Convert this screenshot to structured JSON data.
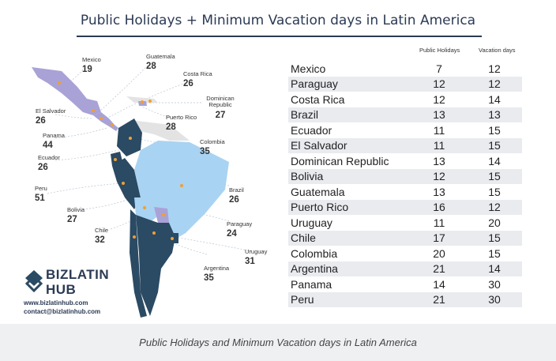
{
  "title": "Public Holidays + Minimum Vacation days in Latin America",
  "table": {
    "headers": {
      "public_holidays": "Public Holidays",
      "vacation_days": "Vacation days"
    },
    "rows": [
      {
        "country": "Mexico",
        "public_holidays": "7",
        "vacation_days": "12"
      },
      {
        "country": "Paraguay",
        "public_holidays": "12",
        "vacation_days": "12"
      },
      {
        "country": "Costa Rica",
        "public_holidays": "12",
        "vacation_days": "14"
      },
      {
        "country": "Brazil",
        "public_holidays": "13",
        "vacation_days": "13"
      },
      {
        "country": "Ecuador",
        "public_holidays": "11",
        "vacation_days": "15"
      },
      {
        "country": "El Salvador",
        "public_holidays": "11",
        "vacation_days": "15"
      },
      {
        "country": "Dominican Republic",
        "public_holidays": "13",
        "vacation_days": "14"
      },
      {
        "country": "Bolivia",
        "public_holidays": "12",
        "vacation_days": "15"
      },
      {
        "country": "Guatemala",
        "public_holidays": "13",
        "vacation_days": "15"
      },
      {
        "country": "Puerto Rico",
        "public_holidays": "16",
        "vacation_days": "12"
      },
      {
        "country": "Uruguay",
        "public_holidays": "11",
        "vacation_days": "20"
      },
      {
        "country": "Chile",
        "public_holidays": "17",
        "vacation_days": "15"
      },
      {
        "country": "Colombia",
        "public_holidays": "20",
        "vacation_days": "15"
      },
      {
        "country": "Argentina",
        "public_holidays": "21",
        "vacation_days": "14"
      },
      {
        "country": "Panama",
        "public_holidays": "14",
        "vacation_days": "30"
      },
      {
        "country": "Peru",
        "public_holidays": "21",
        "vacation_days": "30"
      }
    ]
  },
  "map_labels": {
    "mexico": {
      "name": "Mexico",
      "total": "19"
    },
    "guatemala": {
      "name": "Guatemala",
      "total": "28"
    },
    "costa_rica": {
      "name": "Costa Rica",
      "total": "26"
    },
    "dominican_republic": {
      "name": "Dominican\nRepublic",
      "total": "27"
    },
    "el_salvador": {
      "name": "El Salvador",
      "total": "26"
    },
    "puerto_rico": {
      "name": "Puerto Rico",
      "total": "28"
    },
    "panama": {
      "name": "Panama",
      "total": "44"
    },
    "colombia": {
      "name": "Colombia",
      "total": "35"
    },
    "ecuador": {
      "name": "Ecuador",
      "total": "26"
    },
    "peru": {
      "name": "Peru",
      "total": "51"
    },
    "brazil": {
      "name": "Brazil",
      "total": "26"
    },
    "bolivia": {
      "name": "Bolivia",
      "total": "27"
    },
    "paraguay": {
      "name": "Paraguay",
      "total": "24"
    },
    "chile": {
      "name": "Chile",
      "total": "32"
    },
    "uruguay": {
      "name": "Uruguay",
      "total": "31"
    },
    "argentina": {
      "name": "Argentina",
      "total": "35"
    }
  },
  "logo": {
    "line1": "BIZLATIN",
    "line2": "HUB"
  },
  "contacts": {
    "website": "www.bizlatinhub.com",
    "email": "contact@bizlatinhub.com"
  },
  "caption": "Public Holidays and Minimum Vacation days in Latin America",
  "colors": {
    "dark_navy": "#2b4a63",
    "light_blue": "#a9d3f2",
    "lavender": "#a9a2d6",
    "grey_land": "#e3e3e3",
    "dot": "#f0a030"
  }
}
